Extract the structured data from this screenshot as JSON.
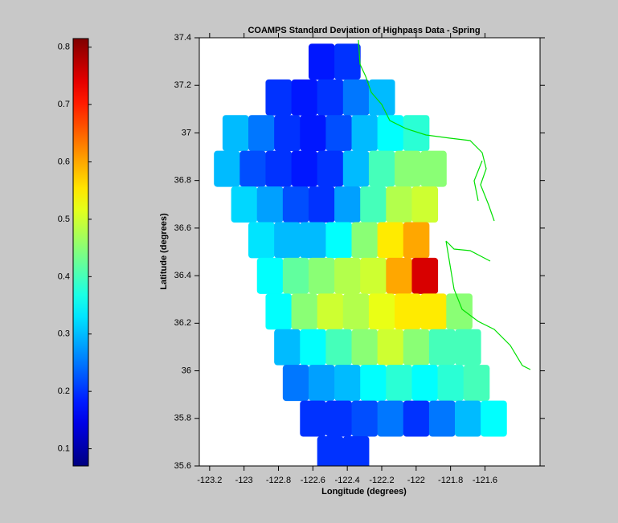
{
  "chart_data": {
    "type": "scatter",
    "title": "COAMPS Standard Deviation of Highpass Data - Spring",
    "x_label": "Longitude (degrees)",
    "y_label": "Latitude (degrees)",
    "xlim": [
      -123.26,
      -121.28
    ],
    "ylim": [
      35.6,
      37.4
    ],
    "xticks": [
      -123.2,
      -123,
      -122.8,
      -122.6,
      -122.4,
      -122.2,
      -122,
      -121.8,
      -121.6
    ],
    "yticks": [
      35.6,
      35.8,
      36,
      36.2,
      36.4,
      36.6,
      36.8,
      37,
      37.2,
      37.4
    ],
    "colormap": "jet",
    "clim": [
      0.07,
      0.815
    ],
    "cticks": [
      0.1,
      0.2,
      0.3,
      0.4,
      0.5,
      0.6,
      0.7,
      0.8
    ],
    "x": [
      -122.55,
      -122.4,
      -122.8,
      -122.65,
      -122.5,
      -122.35,
      -122.2,
      -123.05,
      -122.9,
      -122.75,
      -122.6,
      -122.45,
      -122.3,
      -122.15,
      -122.0,
      -123.1,
      -122.95,
      -122.8,
      -122.65,
      -122.5,
      -122.35,
      -122.2,
      -122.05,
      -121.9,
      -123.0,
      -122.85,
      -122.7,
      -122.55,
      -122.4,
      -122.25,
      -122.1,
      -121.95,
      -122.9,
      -122.75,
      -122.6,
      -122.45,
      -122.3,
      -122.15,
      -122.0,
      -122.85,
      -122.7,
      -122.55,
      -122.4,
      -122.25,
      -122.1,
      -121.95,
      -122.8,
      -122.65,
      -122.5,
      -122.35,
      -122.2,
      -122.05,
      -121.9,
      -121.75,
      -122.75,
      -122.6,
      -122.45,
      -122.3,
      -122.15,
      -122.0,
      -121.85,
      -121.7,
      -122.7,
      -122.55,
      -122.4,
      -122.25,
      -122.1,
      -121.95,
      -121.8,
      -121.65,
      -122.6,
      -122.45,
      -122.3,
      -122.15,
      -122.0,
      -121.85,
      -121.7,
      -121.55,
      -122.5,
      -122.35
    ],
    "y": [
      37.3,
      37.3,
      37.15,
      37.15,
      37.15,
      37.15,
      37.15,
      37.0,
      37.0,
      37.0,
      37.0,
      37.0,
      37.0,
      37.0,
      37.0,
      36.85,
      36.85,
      36.85,
      36.85,
      36.85,
      36.85,
      36.85,
      36.85,
      36.85,
      36.7,
      36.7,
      36.7,
      36.7,
      36.7,
      36.7,
      36.7,
      36.7,
      36.55,
      36.55,
      36.55,
      36.55,
      36.55,
      36.55,
      36.55,
      36.4,
      36.4,
      36.4,
      36.4,
      36.4,
      36.4,
      36.4,
      36.25,
      36.25,
      36.25,
      36.25,
      36.25,
      36.25,
      36.25,
      36.25,
      36.1,
      36.1,
      36.1,
      36.1,
      36.1,
      36.1,
      36.1,
      36.1,
      35.95,
      35.95,
      35.95,
      35.95,
      35.95,
      35.95,
      35.95,
      35.95,
      35.8,
      35.8,
      35.8,
      35.8,
      35.8,
      35.8,
      35.8,
      35.8,
      35.65,
      35.65
    ],
    "values": [
      0.18,
      0.2,
      0.2,
      0.18,
      0.2,
      0.25,
      0.3,
      0.3,
      0.25,
      0.2,
      0.18,
      0.22,
      0.3,
      0.35,
      0.38,
      0.3,
      0.22,
      0.2,
      0.18,
      0.2,
      0.3,
      0.4,
      0.45,
      0.45,
      0.32,
      0.28,
      0.22,
      0.2,
      0.28,
      0.4,
      0.48,
      0.5,
      0.33,
      0.3,
      0.3,
      0.35,
      0.45,
      0.55,
      0.6,
      0.35,
      0.42,
      0.45,
      0.48,
      0.5,
      0.6,
      0.75,
      0.35,
      0.45,
      0.5,
      0.48,
      0.52,
      0.55,
      0.55,
      0.45,
      0.3,
      0.35,
      0.4,
      0.45,
      0.5,
      0.45,
      0.4,
      0.4,
      0.25,
      0.28,
      0.3,
      0.35,
      0.38,
      0.35,
      0.38,
      0.4,
      0.2,
      0.2,
      0.22,
      0.25,
      0.2,
      0.25,
      0.3,
      0.35,
      0.2,
      0.2
    ]
  }
}
